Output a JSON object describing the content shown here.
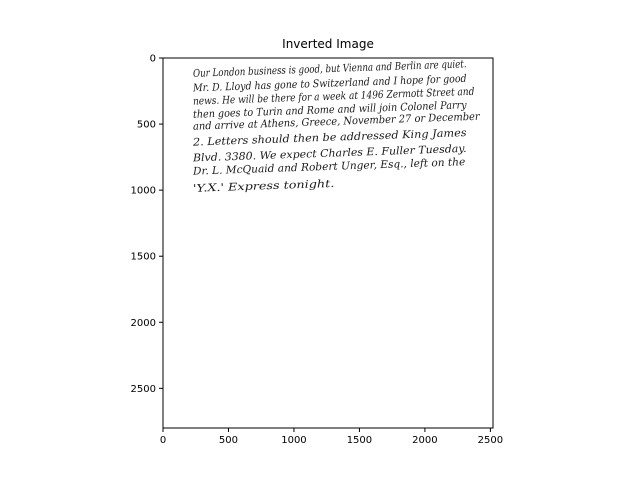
{
  "chart_data": {
    "type": "image",
    "title": "Inverted Image",
    "xlabel": "",
    "ylabel": "",
    "xlim": [
      0,
      2520
    ],
    "ylim": [
      2800,
      0
    ],
    "x_ticks": [
      0,
      500,
      1000,
      1500,
      2000,
      2500
    ],
    "y_ticks": [
      0,
      500,
      1000,
      1500,
      2000,
      2500
    ],
    "grid": false,
    "image_content": {
      "kind": "handwritten note",
      "lines": [
        "Our London business is good, but Vienna and Berlin are quiet.",
        "Mr. D. Lloyd has gone to Switzerland and I hope for good",
        "news. He will be there for a week at 1496 Zermott Street and",
        "then goes to Turin and Rome and will join Colonel Parry",
        "and arrive at Athens, Greece, November 27 or December",
        "2. Letters should then be addressed King James",
        "Blvd. 3380. We expect Charles E. Fuller Tuesday.",
        "Dr. L. McQuaid and Robert Unger, Esq., left on the",
        "'Y.X.' Express tonight."
      ],
      "line_y": [
        120,
        230,
        330,
        430,
        520,
        640,
        760,
        860,
        990
      ],
      "x_start": 230,
      "line_x_end": [
        2320,
        2320,
        2380,
        2320,
        2420,
        2320,
        2320,
        2310,
        1310
      ]
    }
  }
}
